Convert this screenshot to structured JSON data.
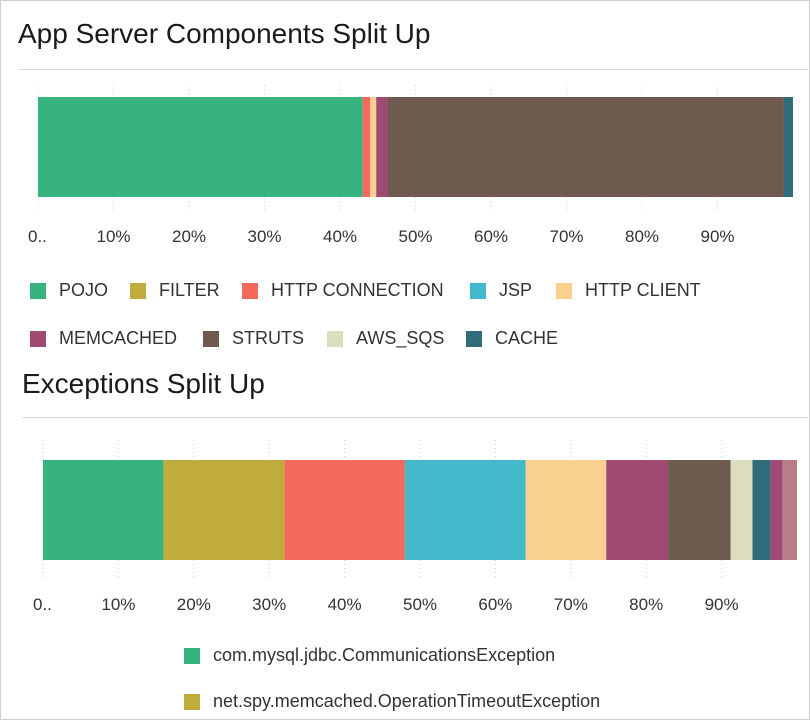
{
  "panels": {
    "components": {
      "title": "App Server Components Split Up"
    },
    "exceptions": {
      "title": "Exceptions Split Up"
    }
  },
  "chart_data": [
    {
      "type": "bar",
      "orientation": "horizontal-stacked",
      "title": "App Server Components Split Up",
      "xlim": [
        0,
        100
      ],
      "x_tick_labels": [
        "0..",
        "10%",
        "20%",
        "30%",
        "40%",
        "50%",
        "60%",
        "70%",
        "80%",
        "90%"
      ],
      "grid": "vertical-dotted",
      "legend_position": "bottom",
      "series": [
        {
          "name": "POJO",
          "value": 43.0,
          "color": "#36b37e"
        },
        {
          "name": "FILTER",
          "value": 0.0,
          "color": "#c0ab3d"
        },
        {
          "name": "HTTP CONNECTION",
          "value": 1.0,
          "color": "#f4695c"
        },
        {
          "name": "JSP",
          "value": 0.0,
          "color": "#43b9cb"
        },
        {
          "name": "HTTP CLIENT",
          "value": 0.8,
          "color": "#f9d08f"
        },
        {
          "name": "MEMCACHED",
          "value": 1.5,
          "color": "#9e4a72"
        },
        {
          "name": "STRUTS",
          "value": 52.5,
          "color": "#6e5a4e"
        },
        {
          "name": "AWS_SQS",
          "value": 0.0,
          "color": "#dcdcbf"
        },
        {
          "name": "CACHE",
          "value": 1.2,
          "color": "#2f6c7c"
        }
      ]
    },
    {
      "type": "bar",
      "orientation": "horizontal-stacked",
      "title": "Exceptions Split Up",
      "xlim": [
        0,
        100
      ],
      "x_tick_labels": [
        "0..",
        "10%",
        "20%",
        "30%",
        "40%",
        "50%",
        "60%",
        "70%",
        "80%",
        "90%"
      ],
      "grid": "vertical-dotted",
      "legend_position": "bottom",
      "series": [
        {
          "name": "com.mysql.jdbc.CommunicationsException",
          "value": 16.0,
          "color": "#36b37e"
        },
        {
          "name": "net.spy.memcached.OperationTimeoutException",
          "value": 16.0,
          "color": "#c0ab3d"
        },
        {
          "name": "",
          "value": 16.0,
          "color": "#f4695c"
        },
        {
          "name": "",
          "value": 16.0,
          "color": "#43b9cb"
        },
        {
          "name": "",
          "value": 10.7,
          "color": "#f9d08f"
        },
        {
          "name": "",
          "value": 8.2,
          "color": "#9e4a72"
        },
        {
          "name": "",
          "value": 8.3,
          "color": "#6e5a4e"
        },
        {
          "name": "",
          "value": 2.9,
          "color": "#dcdcbf"
        },
        {
          "name": "",
          "value": 2.4,
          "color": "#2f6c7c"
        },
        {
          "name": "",
          "value": 1.6,
          "color": "#9e4a72"
        },
        {
          "name": "",
          "value": 1.9,
          "color": "#b87d87"
        }
      ]
    }
  ]
}
